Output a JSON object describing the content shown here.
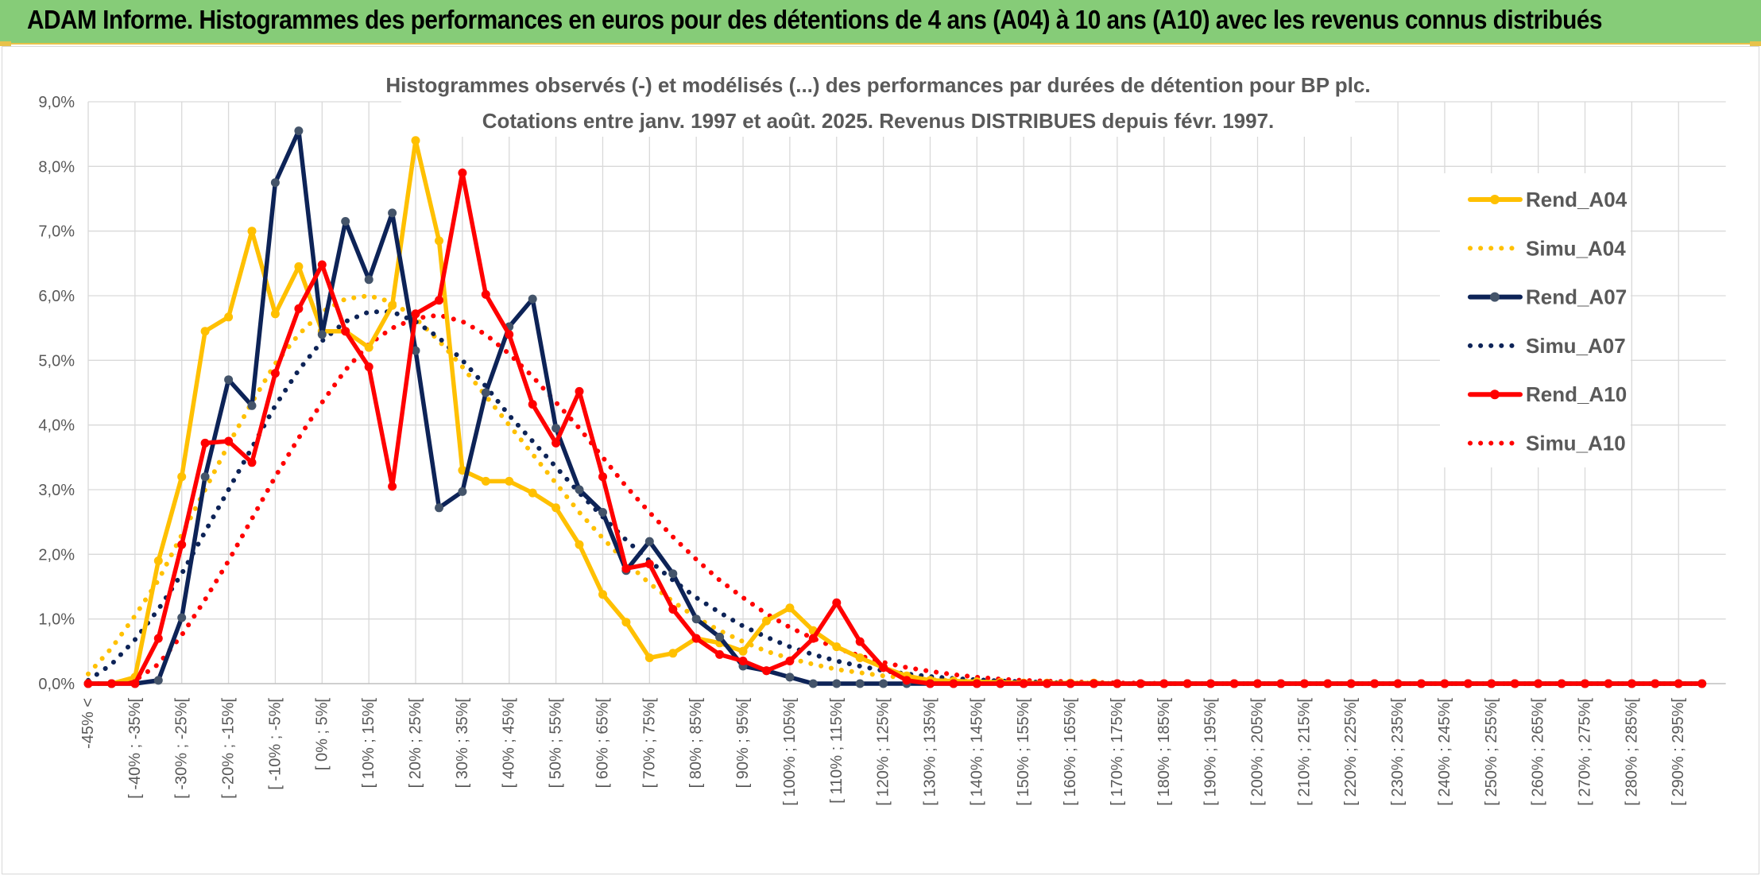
{
  "banner": {
    "title": "ADAM Informe. Histogrammes des performances en euros pour des détentions de 4 ans (A04) à 10 ans (A10) avec les revenus connus distribués"
  },
  "colors": {
    "banner_bg": "#86cc78",
    "accent": "#e8c24a",
    "A04": "#FFC000",
    "A07": "#0D2357",
    "A10": "#FF0000"
  },
  "chart_data": {
    "type": "line",
    "title": "Histogrammes observés (-) et modélisés (...) des performances par durées de détention pour BP plc.",
    "subtitle": "Cotations entre janv. 1997 et août. 2025. Revenus DISTRIBUES depuis févr. 1997.",
    "xlabel": "",
    "ylabel": "",
    "ylim": [
      0,
      9
    ],
    "y_unit": "%",
    "yticks": [
      "0,0%",
      "1,0%",
      "2,0%",
      "3,0%",
      "4,0%",
      "5,0%",
      "6,0%",
      "7,0%",
      "8,0%",
      "9,0%"
    ],
    "grid": true,
    "legend_position": "right",
    "categories": [
      "-45% <",
      "",
      "[ -40% ; -35%[",
      "",
      "[ -30% ; -25%[",
      "",
      "[ -20% ; -15%[",
      "",
      "[ -10% ; -5%[",
      "",
      "[ 0% ; 5%[",
      "",
      "[ 10% ; 15%[",
      "",
      "[ 20% ; 25%[",
      "",
      "[ 30% ; 35%[",
      "",
      "[ 40% ; 45%[",
      "",
      "[ 50% ; 55%[",
      "",
      "[ 60% ; 65%[",
      "",
      "[ 70% ; 75%[",
      "",
      "[ 80% ; 85%[",
      "",
      "[ 90% ; 95%[",
      "",
      "[ 100% ; 105%[",
      "",
      "[ 110% ; 115%[",
      "",
      "[ 120% ; 125%[",
      "",
      "[ 130% ; 135%[",
      "",
      "[ 140% ; 145%[",
      "",
      "[ 150% ; 155%[",
      "",
      "[ 160% ; 165%[",
      "",
      "[ 170% ; 175%[",
      "",
      "[ 180% ; 185%[",
      "",
      "[ 190% ; 195%[",
      "",
      "[ 200% ; 205%[",
      "",
      "[ 210% ; 215%[",
      "",
      "[ 220% ; 225%[",
      "",
      "[ 230% ; 235%[",
      "",
      "[ 240% ; 245%[",
      "",
      "[ 250% ; 255%[",
      "",
      "[ 260% ; 265%[",
      "",
      "[ 270% ; 275%[",
      "",
      "[ 280% ; 285%[",
      "",
      "[ 290% ; 295%[",
      ""
    ],
    "series": [
      {
        "name": "Rend_A04",
        "style": "solid",
        "color": "#FFC000",
        "values": [
          0,
          0,
          0.1,
          1.9,
          3.2,
          5.45,
          5.67,
          7.0,
          5.72,
          6.45,
          5.45,
          5.45,
          5.2,
          5.85,
          8.4,
          6.85,
          3.3,
          3.13,
          3.13,
          2.95,
          2.72,
          2.15,
          1.38,
          0.95,
          0.4,
          0.47,
          0.7,
          0.63,
          0.5,
          0.97,
          1.17,
          0.82,
          0.57,
          0.4,
          0.25,
          0.12,
          0.05,
          0.04,
          0.03,
          0.02,
          0.01,
          0.01,
          0.01,
          0.01,
          0,
          0,
          0,
          0,
          0,
          0,
          0,
          0,
          0,
          0,
          0,
          0,
          0,
          0,
          0,
          0,
          0,
          0,
          0,
          0,
          0,
          0,
          0,
          0,
          0,
          0
        ]
      },
      {
        "name": "Simu_A04",
        "style": "dotted",
        "color": "#FFC000",
        "values": [
          0.15,
          0.55,
          1.05,
          1.6,
          2.3,
          3.0,
          3.7,
          4.35,
          4.95,
          5.4,
          5.75,
          5.95,
          6.0,
          5.9,
          5.65,
          5.3,
          4.9,
          4.45,
          4.0,
          3.55,
          3.1,
          2.65,
          2.25,
          1.88,
          1.55,
          1.27,
          1.02,
          0.82,
          0.65,
          0.5,
          0.39,
          0.3,
          0.22,
          0.17,
          0.12,
          0.09,
          0.06,
          0.05,
          0.03,
          0.02,
          0.02,
          0.01,
          0.01,
          0,
          0,
          0,
          0,
          0,
          0,
          0,
          0,
          0,
          0,
          0,
          0,
          0,
          0,
          0,
          0,
          0,
          0,
          0,
          0,
          0,
          0,
          0,
          0,
          0,
          0,
          0
        ]
      },
      {
        "name": "Rend_A07",
        "style": "solid",
        "color": "#0D2357",
        "values": [
          0,
          0,
          0,
          0.05,
          1.02,
          3.2,
          4.7,
          4.3,
          7.75,
          8.55,
          5.4,
          7.15,
          6.25,
          7.28,
          5.15,
          2.72,
          2.97,
          4.5,
          5.52,
          5.95,
          3.95,
          3.0,
          2.65,
          1.75,
          2.2,
          1.7,
          1.0,
          0.72,
          0.27,
          0.2,
          0.1,
          0,
          0,
          0,
          0,
          0,
          0,
          0,
          0,
          0,
          0,
          0,
          0,
          0,
          0,
          0,
          0,
          0,
          0,
          0,
          0,
          0,
          0,
          0,
          0,
          0,
          0,
          0,
          0,
          0,
          0,
          0,
          0,
          0,
          0,
          0,
          0,
          0,
          0,
          0
        ]
      },
      {
        "name": "Simu_A07",
        "style": "dotted",
        "color": "#0D2357",
        "values": [
          0.05,
          0.3,
          0.68,
          1.15,
          1.7,
          2.35,
          3.0,
          3.65,
          4.3,
          4.85,
          5.3,
          5.6,
          5.75,
          5.75,
          5.6,
          5.35,
          5.0,
          4.6,
          4.15,
          3.75,
          3.35,
          2.95,
          2.58,
          2.22,
          1.9,
          1.6,
          1.33,
          1.1,
          0.89,
          0.72,
          0.57,
          0.45,
          0.35,
          0.27,
          0.2,
          0.15,
          0.11,
          0.08,
          0.06,
          0.04,
          0.03,
          0.02,
          0.01,
          0.01,
          0,
          0,
          0,
          0,
          0,
          0,
          0,
          0,
          0,
          0,
          0,
          0,
          0,
          0,
          0,
          0,
          0,
          0,
          0,
          0,
          0,
          0,
          0,
          0,
          0,
          0
        ]
      },
      {
        "name": "Rend_A10",
        "style": "solid",
        "color": "#FF0000",
        "values": [
          0,
          0,
          0,
          0.7,
          2.15,
          3.72,
          3.75,
          3.42,
          4.8,
          5.8,
          6.48,
          5.45,
          4.9,
          3.05,
          5.72,
          5.93,
          7.9,
          6.02,
          5.4,
          4.32,
          3.72,
          4.52,
          3.2,
          1.78,
          1.85,
          1.15,
          0.7,
          0.45,
          0.35,
          0.2,
          0.35,
          0.7,
          1.25,
          0.65,
          0.25,
          0.05,
          0,
          0,
          0,
          0,
          0,
          0,
          0,
          0,
          0,
          0,
          0,
          0,
          0,
          0,
          0,
          0,
          0,
          0,
          0,
          0,
          0,
          0,
          0,
          0,
          0,
          0,
          0,
          0,
          0,
          0,
          0,
          0,
          0,
          0
        ]
      },
      {
        "name": "Simu_A10",
        "style": "dotted",
        "color": "#FF0000",
        "values": [
          0,
          0,
          0.05,
          0.3,
          0.75,
          1.3,
          1.9,
          2.55,
          3.2,
          3.8,
          4.35,
          4.85,
          5.25,
          5.5,
          5.65,
          5.7,
          5.6,
          5.4,
          5.1,
          4.75,
          4.35,
          3.95,
          3.5,
          3.05,
          2.65,
          2.27,
          1.92,
          1.6,
          1.33,
          1.08,
          0.87,
          0.7,
          0.55,
          0.43,
          0.33,
          0.25,
          0.19,
          0.14,
          0.1,
          0.07,
          0.05,
          0.04,
          0.03,
          0.02,
          0.01,
          0.01,
          0,
          0,
          0,
          0,
          0,
          0,
          0,
          0,
          0,
          0,
          0,
          0,
          0,
          0,
          0,
          0,
          0,
          0,
          0,
          0,
          0,
          0,
          0,
          0
        ]
      }
    ]
  }
}
